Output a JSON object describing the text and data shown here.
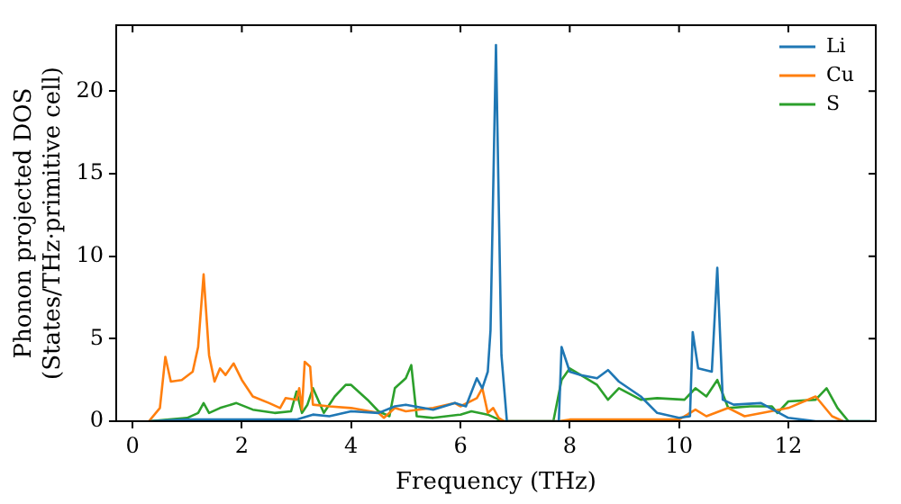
{
  "chart_data": {
    "type": "line",
    "xlabel": "Frequency (THz)",
    "ylabel": "Phonon projected DOS\n(States/THz·primitive cell)",
    "xlim": [
      -0.3,
      13.6
    ],
    "ylim": [
      0,
      24
    ],
    "xticks": [
      0,
      2,
      4,
      6,
      8,
      10,
      12
    ],
    "yticks": [
      0,
      5,
      10,
      15,
      20
    ],
    "grid": false,
    "legend": "top right",
    "marker": "none",
    "line_style": "solid",
    "series": [
      {
        "name": "Li",
        "color": "#1f77b4",
        "x": [
          0.3,
          1,
          2,
          3,
          3.3,
          3.6,
          4,
          4.5,
          4.8,
          5,
          5.5,
          5.9,
          6.1,
          6.3,
          6.4,
          6.5,
          6.55,
          6.65,
          6.75,
          6.85,
          7.8,
          7.85,
          8,
          8.2,
          8.5,
          8.7,
          8.9,
          9.3,
          9.6,
          10,
          10.2,
          10.25,
          10.35,
          10.6,
          10.7,
          10.8,
          11,
          11.5,
          12,
          12.5,
          13.5
        ],
        "values": [
          0,
          0.1,
          0.1,
          0.1,
          0.4,
          0.3,
          0.6,
          0.5,
          0.9,
          1,
          0.7,
          1.1,
          0.9,
          2.6,
          2,
          3,
          5.5,
          22.8,
          4,
          0,
          0,
          4.5,
          3,
          2.8,
          2.6,
          3.1,
          2.4,
          1.5,
          0.5,
          0.2,
          0.3,
          5.4,
          3.2,
          3,
          9.3,
          1.3,
          1,
          1.1,
          0.2,
          0,
          0
        ]
      },
      {
        "name": "Cu",
        "color": "#ff7f0e",
        "x": [
          0.3,
          0.5,
          0.6,
          0.7,
          0.9,
          1.1,
          1.2,
          1.3,
          1.4,
          1.5,
          1.6,
          1.7,
          1.85,
          2,
          2.2,
          2.5,
          2.7,
          2.8,
          3,
          3.05,
          3.1,
          3.15,
          3.25,
          3.3,
          3.6,
          4,
          4.5,
          4.6,
          4.8,
          5,
          5.5,
          5.9,
          6,
          6.3,
          6.4,
          6.5,
          6.6,
          6.7,
          6.8,
          7.8,
          8,
          10,
          10.3,
          10.5,
          10.9,
          11.2,
          12,
          12.5,
          12.8,
          13
        ],
        "values": [
          0,
          0.8,
          3.9,
          2.4,
          2.5,
          3,
          4.5,
          8.9,
          4,
          2.4,
          3.2,
          2.8,
          3.5,
          2.5,
          1.5,
          1.1,
          0.8,
          1.4,
          1.3,
          2,
          0.7,
          3.6,
          3.3,
          1,
          0.9,
          0.8,
          0.5,
          0.2,
          0.8,
          0.6,
          0.8,
          1.1,
          0.9,
          1.4,
          2,
          0.5,
          0.8,
          0.2,
          0,
          0,
          0.1,
          0.1,
          0.7,
          0.3,
          0.8,
          0.3,
          0.8,
          1.5,
          0.3,
          0
        ]
      },
      {
        "name": "S",
        "color": "#2ca02c",
        "x": [
          0.3,
          1,
          1.2,
          1.3,
          1.4,
          1.6,
          1.9,
          2.2,
          2.6,
          2.9,
          3,
          3.1,
          3.2,
          3.3,
          3.5,
          3.7,
          3.9,
          4,
          4.3,
          4.5,
          4.7,
          4.8,
          5,
          5.1,
          5.2,
          5.5,
          6,
          6.2,
          6.5,
          6.7,
          6.8,
          7.7,
          7.85,
          8,
          8.2,
          8.5,
          8.7,
          8.9,
          9.3,
          9.6,
          10.1,
          10.3,
          10.5,
          10.7,
          10.9,
          11.3,
          11.7,
          11.8,
          12,
          12.5,
          12.7,
          12.9,
          13.1,
          13.5
        ],
        "values": [
          0,
          0.2,
          0.5,
          1.1,
          0.5,
          0.8,
          1.1,
          0.7,
          0.5,
          0.6,
          1.8,
          0.5,
          1,
          2,
          0.5,
          1.5,
          2.2,
          2.2,
          1.3,
          0.6,
          0.3,
          2,
          2.6,
          3.4,
          0.3,
          0.2,
          0.4,
          0.6,
          0.4,
          0.1,
          0,
          0,
          2.5,
          3.2,
          2.8,
          2.2,
          1.3,
          2,
          1.3,
          1.4,
          1.3,
          2,
          1.5,
          2.5,
          0.8,
          0.9,
          0.9,
          0.5,
          1.2,
          1.3,
          2,
          0.8,
          0,
          0
        ]
      }
    ]
  }
}
